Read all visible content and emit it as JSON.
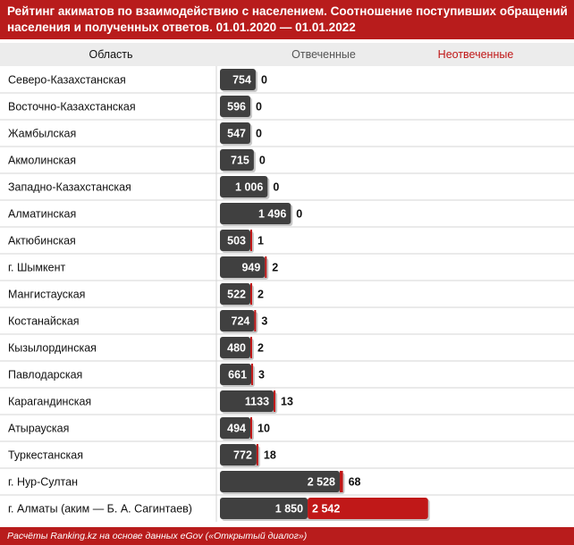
{
  "title": "Рейтинг акиматов по взаимодействию с населением. Соотношение поступивших обращений населения и полученных ответов. 01.01.2020 — 01.01.2022",
  "header": {
    "region": "Область",
    "answered": "Отвеченные",
    "unanswered": "Неотвеченные"
  },
  "footer": "Расчёты Ranking.kz на основе данных eGov («Открытый диалог»)",
  "colors": {
    "brand": "#b81c1c",
    "answered_bar": "#404040",
    "unanswered_bar": "#c01818",
    "header_bg": "#ececec"
  },
  "chart_data": {
    "type": "bar",
    "orientation": "horizontal",
    "stacked": true,
    "title": "Рейтинг акиматов по взаимодействию с населением. Соотношение поступивших обращений населения и полученных ответов. 01.01.2020 — 01.01.2022",
    "categories": [
      "Северо-Казахстанская",
      "Восточно-Казахстанская",
      "Жамбылская",
      "Акмолинская",
      "Западно-Казахстанская",
      "Алматинская",
      "Актюбинская",
      "г. Шымкент",
      "Мангистауская",
      "Костанайская",
      "Кызылординская",
      "Павлодарская",
      "Карагандинская",
      "Атырауская",
      "Туркестанская",
      "г. Нур-Султан",
      "г. Алматы (аким — Б. А. Сагинтаев)"
    ],
    "series": [
      {
        "name": "Отвеченные",
        "values": [
          754,
          596,
          547,
          715,
          1006,
          1496,
          503,
          949,
          522,
          724,
          480,
          661,
          1133,
          494,
          772,
          2528,
          1850
        ],
        "labels": [
          "754",
          "596",
          "547",
          "715",
          "1 006",
          "1 496",
          "503",
          "949",
          "522",
          "724",
          "480",
          "661",
          "1133",
          "494",
          "772",
          "2 528",
          "1 850"
        ]
      },
      {
        "name": "Неотвеченные",
        "values": [
          0,
          0,
          0,
          0,
          0,
          0,
          1,
          2,
          2,
          3,
          2,
          3,
          13,
          10,
          18,
          68,
          2542
        ],
        "labels": [
          "0",
          "0",
          "0",
          "0",
          "0",
          "0",
          "1",
          "2",
          "2",
          "3",
          "2",
          "3",
          "13",
          "10",
          "18",
          "68",
          "2 542"
        ]
      }
    ]
  }
}
